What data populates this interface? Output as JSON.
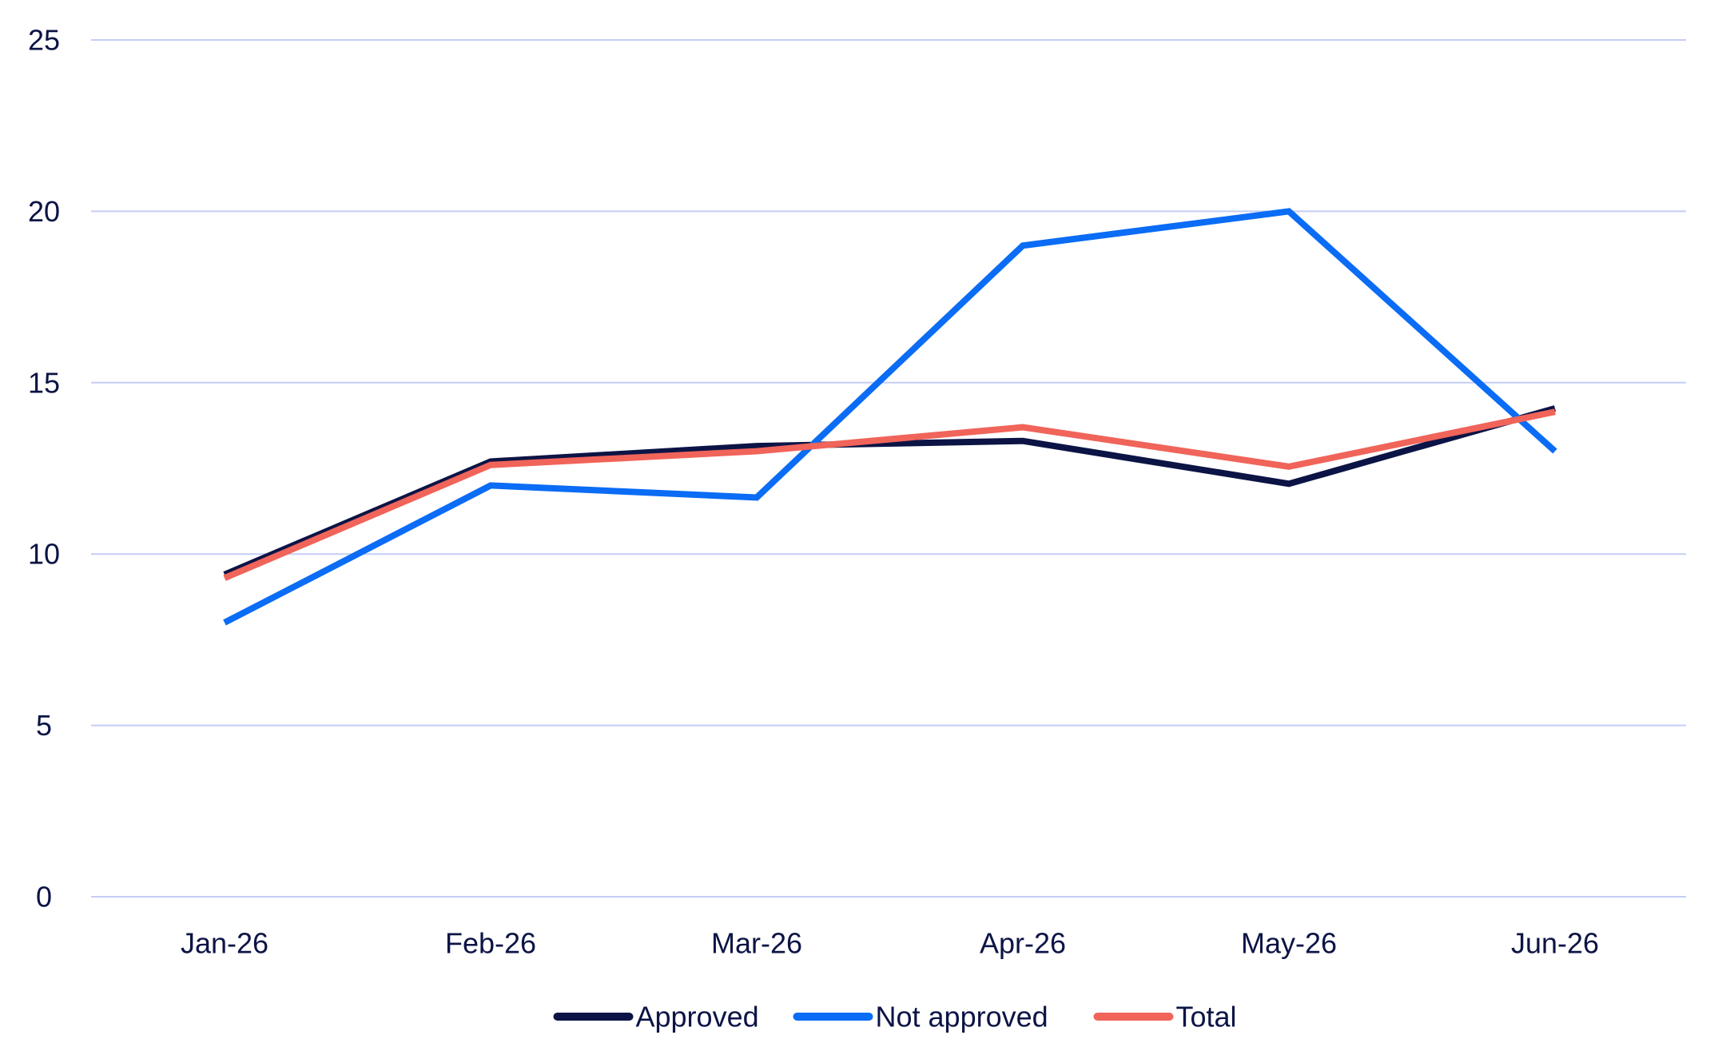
{
  "chart_data": {
    "type": "line",
    "categories": [
      "Jan-26",
      "Feb-26",
      "Mar-26",
      "Apr-26",
      "May-26",
      "Jun-26"
    ],
    "series": [
      {
        "name": "Approved",
        "color": "#0c1445",
        "values": [
          9.4,
          12.7,
          13.15,
          13.3,
          12.05,
          14.25
        ]
      },
      {
        "name": "Not approved",
        "color": "#0b6cf5",
        "values": [
          8.0,
          12.0,
          11.65,
          19.0,
          20.0,
          13.0
        ]
      },
      {
        "name": "Total",
        "color": "#f0645a",
        "values": [
          9.3,
          12.6,
          13.0,
          13.7,
          12.55,
          14.15
        ]
      }
    ],
    "ylim": [
      0,
      25
    ],
    "yticks": [
      "0",
      "5",
      "10",
      "15",
      "20",
      "25"
    ],
    "xlabel": "",
    "ylabel": "",
    "grid": true,
    "gridColor": "#c4cdf5",
    "legend": "bottom"
  }
}
